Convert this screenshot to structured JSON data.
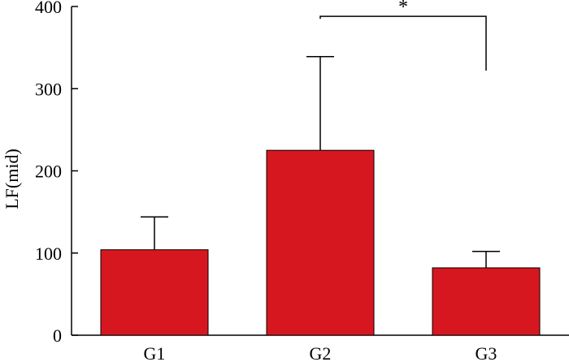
{
  "chart_data": {
    "type": "bar",
    "categories": [
      "G1",
      "G2",
      "G3"
    ],
    "values": [
      104,
      225,
      82
    ],
    "error_plus": [
      40,
      114,
      20
    ],
    "ylabel": "LF(mid)",
    "xlabel": "",
    "ylim": [
      0,
      400
    ],
    "yticks": [
      0,
      100,
      200,
      300,
      400
    ],
    "bar_color": "#d7171f",
    "grid": false,
    "significance": [
      {
        "from": "G2",
        "to": "G3",
        "label": "*",
        "left_level": 385,
        "right_level": 322,
        "top_level": 388
      }
    ]
  }
}
